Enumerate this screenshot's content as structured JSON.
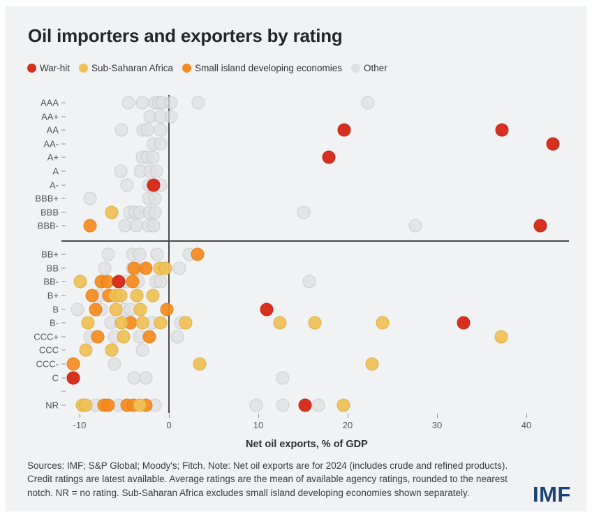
{
  "footer": {
    "note": "Sources: IMF; S&P Global; Moody's; Fitch. Note: Net oil exports are for 2024 (includes crude and refined products). Credit ratings are latest available. Average ratings are the mean of available agency ratings, rounded to the nearest notch. NR = no rating. Sub-Saharan Africa excludes small island developing economies shown separately.",
    "logo": "IMF"
  },
  "chart_data": {
    "type": "scatter",
    "title": "Oil importers and exporters by rating",
    "xlabel": "Net oil exports, % of GDP",
    "x_ticks": [
      -10,
      0,
      10,
      20,
      30,
      40
    ],
    "xlim": [
      -11.6,
      44.8
    ],
    "grid": false,
    "legend_position": "top",
    "y_categories": [
      "AAA",
      "AA+",
      "AA",
      "AA-",
      "A+",
      "A",
      "A-",
      "BBB+",
      "BBB",
      "BBB-",
      "BB+",
      "BB",
      "BB-",
      "B+",
      "B",
      "B-",
      "CCC+",
      "CCC",
      "CCC-",
      "C",
      "",
      "NR"
    ],
    "divider_note": "horizontal rule separates investment grade (BBB- and above) from the rest",
    "series": [
      {
        "name": "War-hit",
        "key": "war",
        "color": "#d7301f",
        "border": "#bf2a1b",
        "points": [
          [
            "AA",
            19.6
          ],
          [
            "AA",
            37.3
          ],
          [
            "AA-",
            43.0
          ],
          [
            "A+",
            17.9
          ],
          [
            "A-",
            -1.7
          ],
          [
            "BBB-",
            41.6
          ],
          [
            "BB-",
            -5.6
          ],
          [
            "B",
            10.9
          ],
          [
            "B-",
            33.0
          ],
          [
            "C",
            -10.7
          ],
          [
            "NR",
            15.2
          ]
        ]
      },
      {
        "name": "Sub-Saharan Africa",
        "key": "ssa",
        "color": "#f0c155",
        "border": "#dcab38",
        "points": [
          [
            "BBB",
            -6.4
          ],
          [
            "BB",
            -1.0
          ],
          [
            "BB",
            -0.4
          ],
          [
            "BB-",
            -9.9
          ],
          [
            "B+",
            -6.0
          ],
          [
            "B+",
            -5.4
          ],
          [
            "B+",
            -3.6
          ],
          [
            "B+",
            -1.8
          ],
          [
            "B",
            -5.9
          ],
          [
            "B",
            -3.2
          ],
          [
            "B-",
            -9.1
          ],
          [
            "B-",
            -5.3
          ],
          [
            "B-",
            -3.0
          ],
          [
            "B-",
            -0.9
          ],
          [
            "B-",
            1.9
          ],
          [
            "B-",
            12.4
          ],
          [
            "B-",
            16.3
          ],
          [
            "B-",
            23.9
          ],
          [
            "CCC+",
            -5.1
          ],
          [
            "CCC+",
            37.2
          ],
          [
            "CCC",
            -9.3
          ],
          [
            "CCC",
            -6.4
          ],
          [
            "CCC-",
            3.4
          ],
          [
            "CCC-",
            22.7
          ],
          [
            "NR",
            -9.7
          ],
          [
            "NR",
            -9.3
          ],
          [
            "NR",
            -3.3
          ],
          [
            "NR",
            19.5
          ]
        ]
      },
      {
        "name": "Small island developing economies",
        "key": "sids",
        "color": "#f68b1f",
        "border": "#e07a10",
        "points": [
          [
            "BBB-",
            -8.8
          ],
          [
            "BB+",
            3.2
          ],
          [
            "BB",
            -3.9
          ],
          [
            "BB",
            -2.6
          ],
          [
            "BB-",
            -7.6
          ],
          [
            "BB-",
            -6.9
          ],
          [
            "BB-",
            -4.1
          ],
          [
            "B+",
            -8.6
          ],
          [
            "B+",
            -6.7
          ],
          [
            "B",
            -8.2
          ],
          [
            "B",
            -0.2
          ],
          [
            "B-",
            -4.3
          ],
          [
            "CCC+",
            -8.0
          ],
          [
            "CCC+",
            -2.2
          ],
          [
            "CCC-",
            -10.7
          ],
          [
            "NR",
            -7.3
          ],
          [
            "NR",
            -6.8
          ],
          [
            "NR",
            -4.7
          ],
          [
            "NR",
            -4.0
          ],
          [
            "NR",
            -2.6
          ]
        ]
      },
      {
        "name": "Other",
        "key": "other",
        "color": "#dfe0e2",
        "border": "#bfc0c3",
        "points": [
          [
            "AAA",
            -4.5
          ],
          [
            "AAA",
            -3.0
          ],
          [
            "AAA",
            -1.6
          ],
          [
            "AAA",
            -1.2
          ],
          [
            "AAA",
            -0.8
          ],
          [
            "AAA",
            0.2
          ],
          [
            "AAA",
            3.3
          ],
          [
            "AAA",
            22.3
          ],
          [
            "AA+",
            -2.1
          ],
          [
            "AA+",
            -0.9
          ],
          [
            "AA+",
            0.2
          ],
          [
            "AA",
            -5.3
          ],
          [
            "AA",
            -2.9
          ],
          [
            "AA",
            -2.4
          ],
          [
            "AA",
            -0.9
          ],
          [
            "AA-",
            -1.7
          ],
          [
            "AA-",
            -0.9
          ],
          [
            "A+",
            -3.0
          ],
          [
            "A+",
            -2.4
          ],
          [
            "A+",
            -1.8
          ],
          [
            "A",
            -5.4
          ],
          [
            "A",
            -3.2
          ],
          [
            "A",
            -2.1
          ],
          [
            "A",
            -1.4
          ],
          [
            "A-",
            -4.7
          ],
          [
            "A-",
            -2.3
          ],
          [
            "A-",
            -0.9
          ],
          [
            "BBB+",
            -8.8
          ],
          [
            "BBB+",
            -2.3
          ],
          [
            "BBB+",
            -1.6
          ],
          [
            "BBB",
            -4.4
          ],
          [
            "BBB",
            -3.8
          ],
          [
            "BBB",
            -3.3
          ],
          [
            "BBB",
            -2.2
          ],
          [
            "BBB",
            -1.6
          ],
          [
            "BBB",
            15.1
          ],
          [
            "BBB-",
            -4.9
          ],
          [
            "BBB-",
            -3.7
          ],
          [
            "BBB-",
            -2.3
          ],
          [
            "BBB-",
            -1.7
          ],
          [
            "BBB-",
            27.6
          ],
          [
            "BB+",
            -6.8
          ],
          [
            "BB+",
            -4.1
          ],
          [
            "BB+",
            -3.3
          ],
          [
            "BB+",
            -1.3
          ],
          [
            "BB+",
            2.3
          ],
          [
            "BB",
            -7.2
          ],
          [
            "BB",
            -4.1
          ],
          [
            "BB",
            -3.5
          ],
          [
            "BB",
            1.2
          ],
          [
            "BB-",
            -4.8
          ],
          [
            "BB-",
            -3.4
          ],
          [
            "BB-",
            -1.5
          ],
          [
            "BB-",
            -0.9
          ],
          [
            "BB-",
            15.7
          ],
          [
            "B+",
            -7.8
          ],
          [
            "B",
            -10.2
          ],
          [
            "B",
            -7.6
          ],
          [
            "B",
            -5.0
          ],
          [
            "B",
            -4.3
          ],
          [
            "B-",
            -6.5
          ],
          [
            "B-",
            -1.9
          ],
          [
            "B-",
            1.3
          ],
          [
            "CCC+",
            -8.8
          ],
          [
            "CCC+",
            -6.1
          ],
          [
            "CCC+",
            -3.3
          ],
          [
            "CCC+",
            0.9
          ],
          [
            "CCC",
            -3.0
          ],
          [
            "CCC-",
            -6.1
          ],
          [
            "C",
            -3.9
          ],
          [
            "C",
            -2.6
          ],
          [
            "C",
            12.7
          ],
          [
            "NR",
            -8.2
          ],
          [
            "NR",
            -5.6
          ],
          [
            "NR",
            -1.6
          ],
          [
            "NR",
            9.8
          ],
          [
            "NR",
            12.7
          ],
          [
            "NR",
            16.7
          ]
        ]
      }
    ]
  }
}
